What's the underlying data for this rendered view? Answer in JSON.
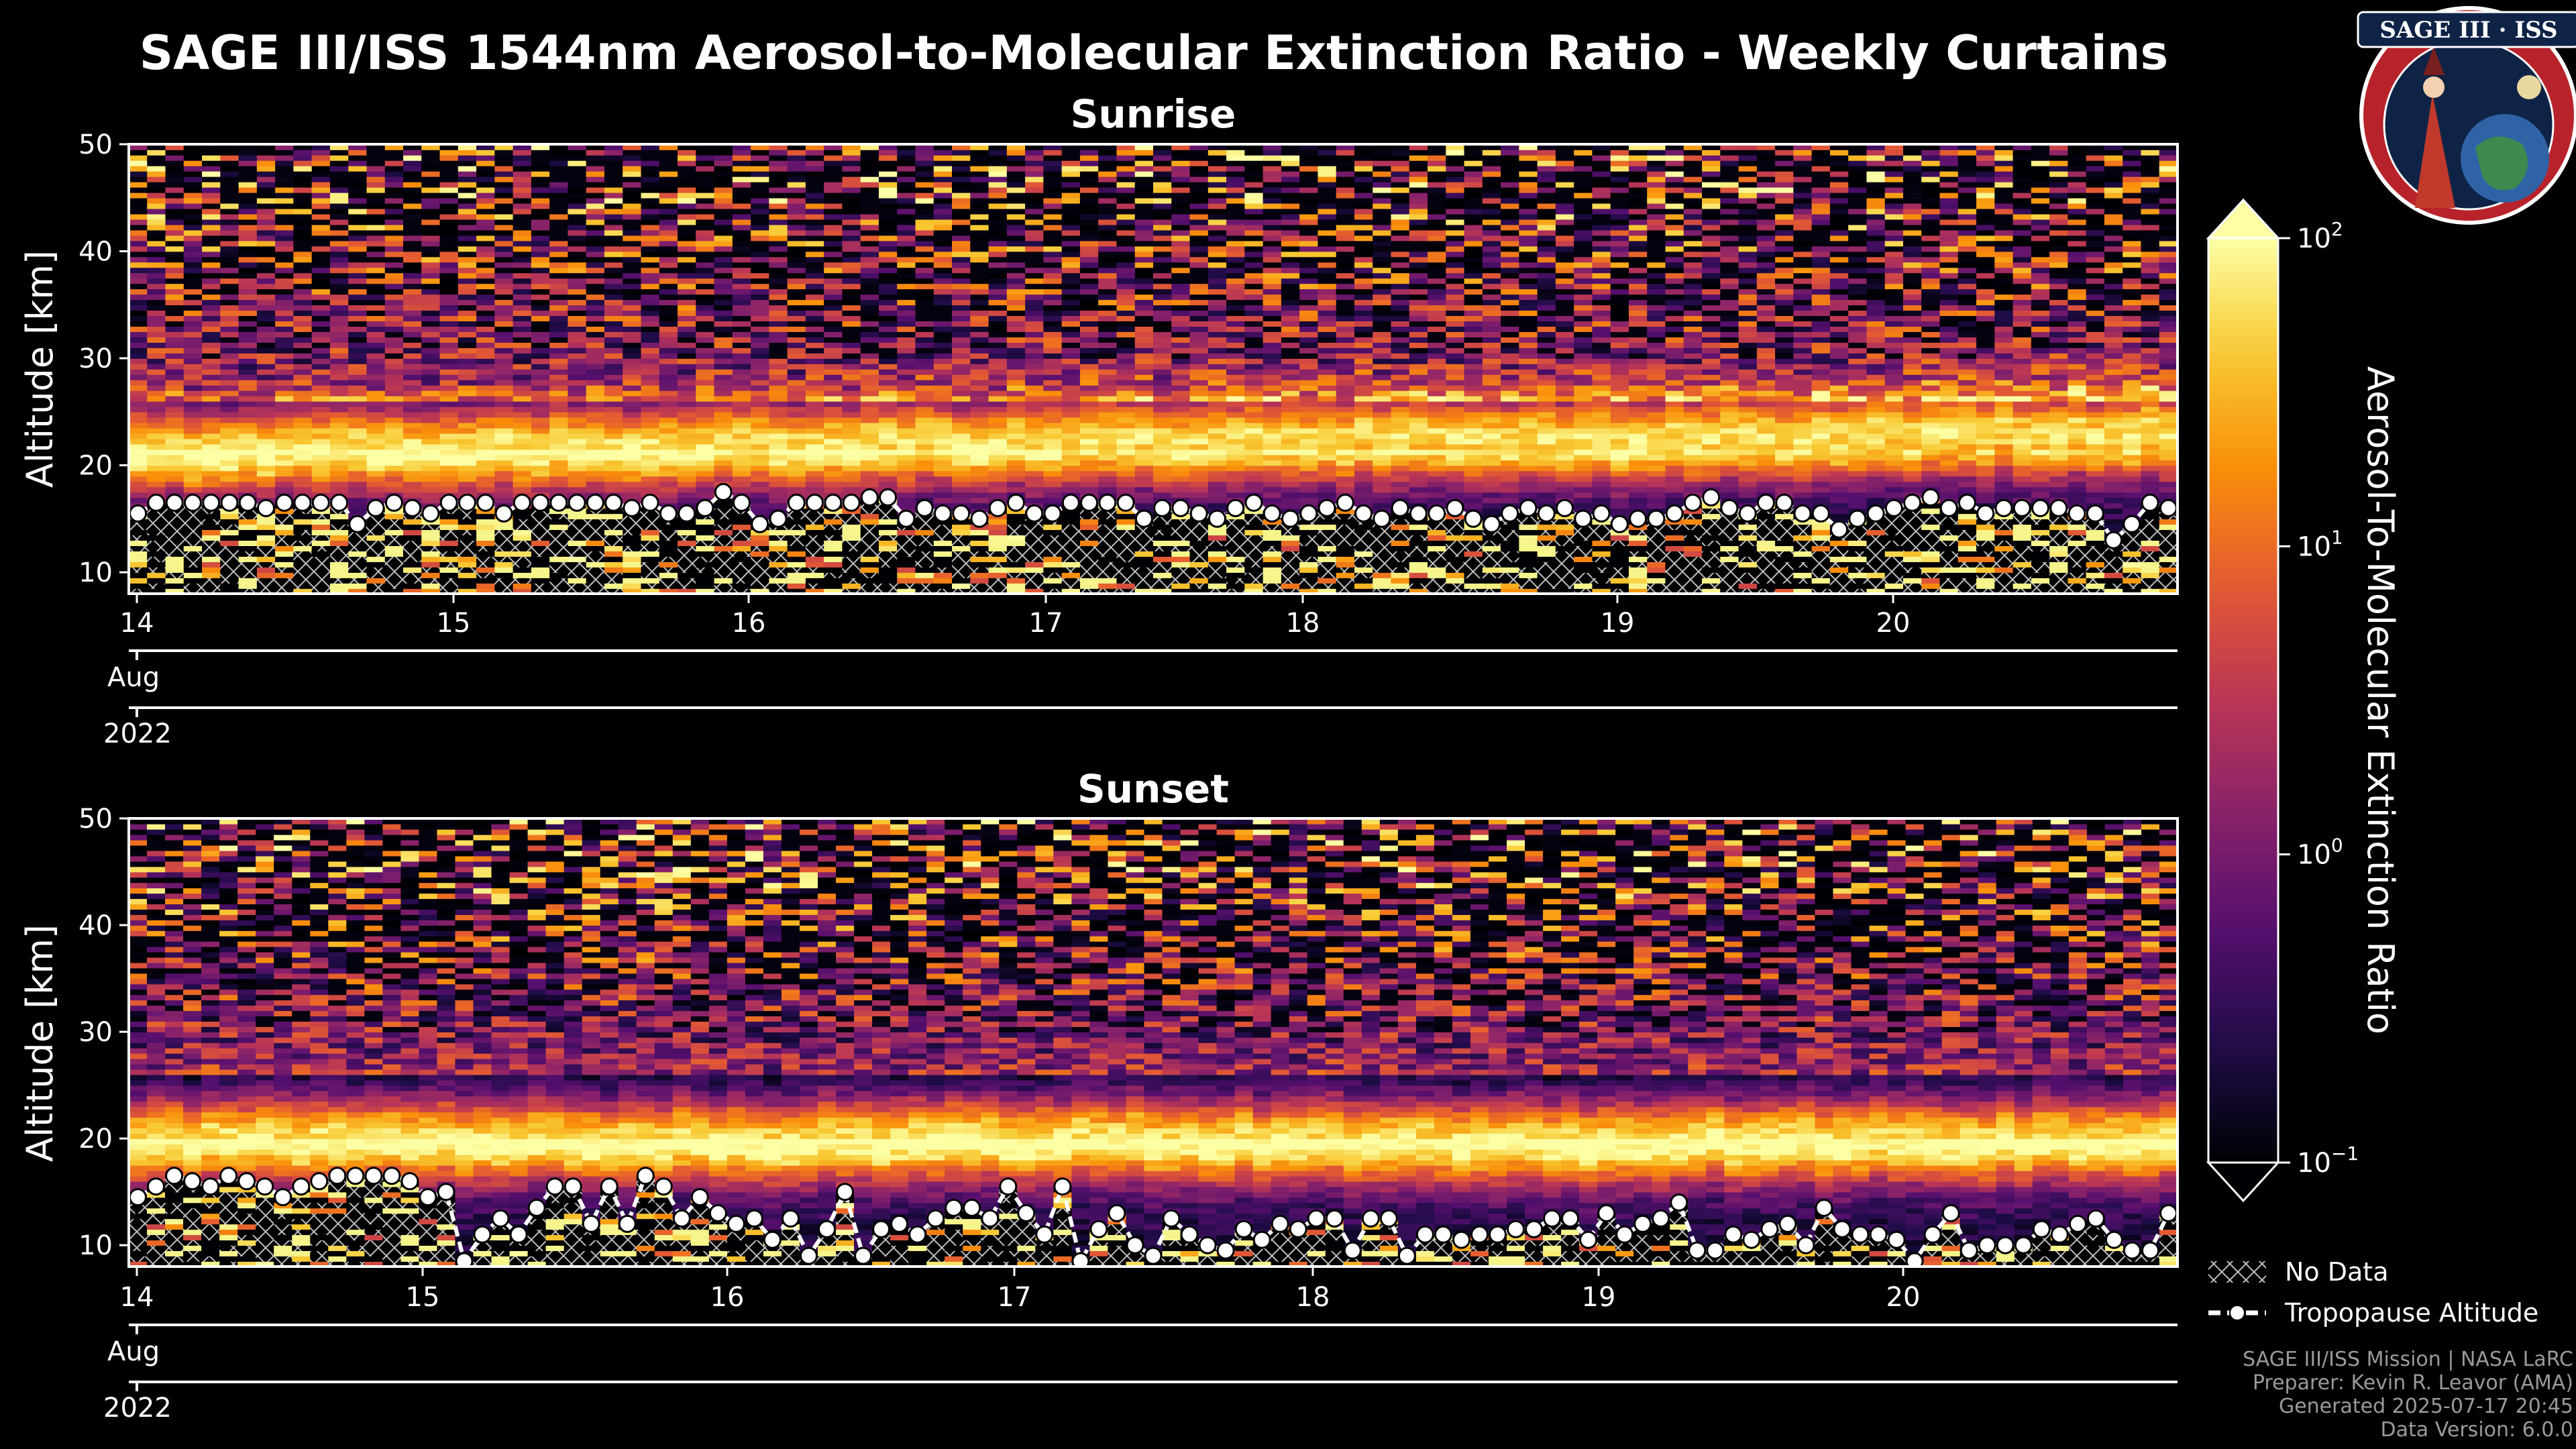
{
  "title": "SAGE III/ISS 1544nm Aerosol-to-Molecular Extinction Ratio - Weekly Curtains",
  "logo": {
    "text": "SAGE III · ISS"
  },
  "colorbar": {
    "label": "Aerosol-To-Molecular Extinction Ratio",
    "colormap": "inferno",
    "scale": "log",
    "range": [
      0.1,
      100
    ],
    "ticks": [
      {
        "base": "10",
        "exp": "2"
      },
      {
        "base": "10",
        "exp": "1"
      },
      {
        "base": "10",
        "exp": "0"
      },
      {
        "base": "10",
        "exp": "−1"
      }
    ]
  },
  "legend": {
    "no_data": "No Data",
    "tropopause": "Tropopause Altitude"
  },
  "credits": [
    "SAGE III/ISS Mission | NASA LaRC",
    "Preparer: Kevin R. Leavor (AMA)",
    "Generated 2025-07-17 20:45",
    "Data Version: 6.0.0"
  ],
  "chart_data": [
    {
      "type": "heatmap",
      "title": "Sunrise",
      "xlabel": "",
      "ylabel": "Altitude [km]",
      "ylim": [
        8,
        50
      ],
      "xlim_days": [
        14.0,
        20.95
      ],
      "yticks": [
        10,
        20,
        30,
        40,
        50
      ],
      "xticks": [
        "14",
        "15",
        "16",
        "17",
        "18",
        "19",
        "20"
      ],
      "month_label": "Aug",
      "year_label": "2022",
      "aerosol_layer_peak_km": 21.5,
      "tropopause_km": [
        15.5,
        16.5,
        16.5,
        16.5,
        16.5,
        16.5,
        16.5,
        16.0,
        16.5,
        16.5,
        16.5,
        16.5,
        14.5,
        16.0,
        16.5,
        16.0,
        15.5,
        16.5,
        16.5,
        16.5,
        15.5,
        16.5,
        16.5,
        16.5,
        16.5,
        16.5,
        16.5,
        16.0,
        16.5,
        15.5,
        15.5,
        16.0,
        17.5,
        16.5,
        14.5,
        15.0,
        16.5,
        16.5,
        16.5,
        16.5,
        17.0,
        17.0,
        15.0,
        16.0,
        15.5,
        15.5,
        15.0,
        16.0,
        16.5,
        15.5,
        15.5,
        16.5,
        16.5,
        16.5,
        16.5,
        15.0,
        16.0,
        16.0,
        15.5,
        15.0,
        16.0,
        16.5,
        15.5,
        15.0,
        15.5,
        16.0,
        16.5,
        15.5,
        15.0,
        16.0,
        15.5,
        15.5,
        16.0,
        15.0,
        14.5,
        15.5,
        16.0,
        15.5,
        16.0,
        15.0,
        15.5,
        14.5,
        15.0,
        15.0,
        15.5,
        16.5,
        17.0,
        16.0,
        15.5,
        16.5,
        16.5,
        15.5,
        15.5,
        14.0,
        15.0,
        15.5,
        16.0,
        16.5,
        17.0,
        16.0,
        16.5,
        15.5,
        16.0,
        16.0,
        16.0,
        16.0,
        15.5,
        15.5,
        13.0,
        14.5,
        16.5,
        16.0
      ]
    },
    {
      "type": "heatmap",
      "title": "Sunset",
      "xlabel": "",
      "ylabel": "Altitude [km]",
      "ylim": [
        8,
        50
      ],
      "xlim_days": [
        14.0,
        20.95
      ],
      "yticks": [
        10,
        20,
        30,
        40,
        50
      ],
      "xticks": [
        "14",
        "15",
        "16",
        "17",
        "18",
        "19",
        "20"
      ],
      "month_label": "Aug",
      "year_label": "2022",
      "aerosol_layer_peak_km": 20.0,
      "tropopause_km": [
        14.5,
        15.5,
        16.5,
        16.0,
        15.5,
        16.5,
        16.0,
        15.5,
        14.5,
        15.5,
        16.0,
        16.5,
        16.5,
        16.5,
        16.5,
        16.0,
        14.5,
        15.0,
        8.5,
        11.0,
        12.5,
        11.0,
        13.5,
        15.5,
        15.5,
        12.0,
        15.5,
        12.0,
        16.5,
        15.5,
        12.5,
        14.5,
        13.0,
        12.0,
        12.5,
        10.5,
        12.5,
        9.0,
        11.5,
        15.0,
        9.0,
        11.5,
        12.0,
        11.0,
        12.5,
        13.5,
        13.5,
        12.5,
        15.5,
        13.0,
        11.0,
        15.5,
        8.5,
        11.5,
        13.0,
        10.0,
        9.0,
        12.5,
        11.0,
        10.0,
        9.5,
        11.5,
        10.5,
        12.0,
        11.5,
        12.5,
        12.5,
        9.5,
        12.5,
        12.5,
        9.0,
        11.0,
        11.0,
        10.5,
        11.0,
        11.0,
        11.5,
        11.5,
        12.5,
        12.5,
        10.5,
        13.0,
        11.0,
        12.0,
        12.5,
        14.0,
        9.5,
        9.5,
        11.0,
        10.5,
        11.5,
        12.0,
        10.0,
        13.5,
        11.5,
        11.0,
        11.0,
        10.5,
        8.5,
        11.0,
        13.0,
        9.5,
        10.0,
        10.0,
        10.0,
        11.5,
        11.0,
        12.0,
        12.5,
        10.5,
        9.5,
        9.5,
        13.0
      ]
    }
  ]
}
